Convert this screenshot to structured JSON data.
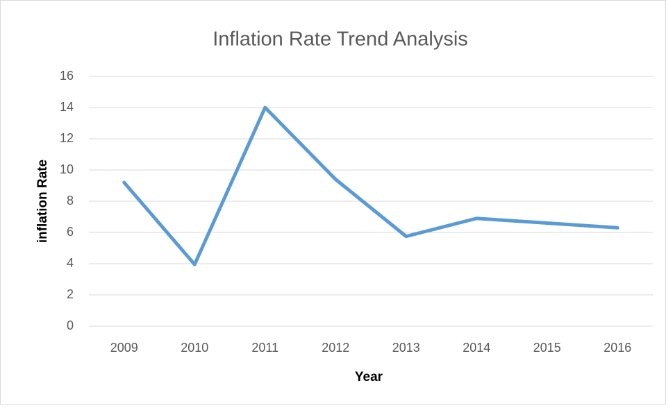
{
  "chart_data": {
    "type": "line",
    "title": "Inflation Rate Trend Analysis",
    "x_label": "Year",
    "y_label": "inflation Rate",
    "categories": [
      "2009",
      "2010",
      "2011",
      "2012",
      "2013",
      "2014",
      "2015",
      "2016"
    ],
    "series": [
      {
        "name": "Inflation Rate",
        "color": "#5b9bd5",
        "values": [
          9.2,
          3.95,
          14.0,
          9.4,
          5.75,
          6.9,
          6.6,
          6.3
        ]
      }
    ],
    "ylim": [
      0,
      16
    ],
    "yticks": [
      0,
      2,
      4,
      6,
      8,
      10,
      12,
      14,
      16
    ],
    "grid": true
  }
}
